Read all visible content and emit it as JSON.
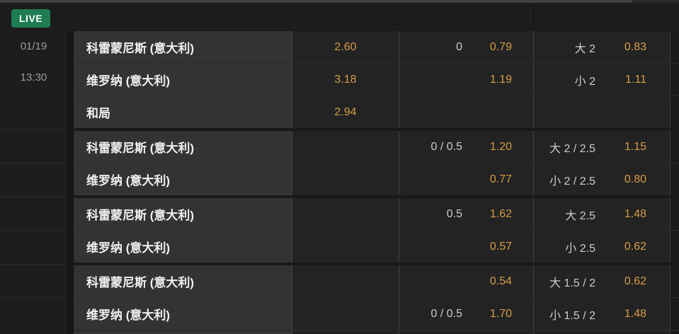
{
  "header": {
    "live_label": "LIVE",
    "date": "01/19",
    "time": "13:30"
  },
  "colors": {
    "live_badge_green": "#1e7b52",
    "odds_gold": "#d69c46",
    "line_label_gray": "#cccccc",
    "team_text_white": "#f1f1f1",
    "row_bg": "#232323",
    "team_cell_bg": "#333333"
  },
  "rows": [
    {
      "team": "科雷蒙尼斯 (意大利)",
      "odds_1x2": "2.60",
      "hcp_line": "0",
      "hcp_odds": "0.79",
      "ou_line": "大 2",
      "ou_odds": "0.83"
    },
    {
      "team": "维罗纳 (意大利)",
      "odds_1x2": "3.18",
      "hcp_line": "",
      "hcp_odds": "1.19",
      "ou_line": "小 2",
      "ou_odds": "1.11"
    },
    {
      "team": "和局",
      "odds_1x2": "2.94",
      "hcp_line": "",
      "hcp_odds": "",
      "ou_line": "",
      "ou_odds": ""
    },
    {
      "team": "科雷蒙尼斯 (意大利)",
      "odds_1x2": "",
      "hcp_line": "0 / 0.5",
      "hcp_odds": "1.20",
      "ou_line": "大 2 / 2.5",
      "ou_odds": "1.15"
    },
    {
      "team": "维罗纳 (意大利)",
      "odds_1x2": "",
      "hcp_line": "",
      "hcp_odds": "0.77",
      "ou_line": "小 2 / 2.5",
      "ou_odds": "0.80"
    },
    {
      "team": "科雷蒙尼斯 (意大利)",
      "odds_1x2": "",
      "hcp_line": "0.5",
      "hcp_odds": "1.62",
      "ou_line": "大 2.5",
      "ou_odds": "1.48"
    },
    {
      "team": "维罗纳 (意大利)",
      "odds_1x2": "",
      "hcp_line": "",
      "hcp_odds": "0.57",
      "ou_line": "小 2.5",
      "ou_odds": "0.62"
    },
    {
      "team": "科雷蒙尼斯 (意大利)",
      "odds_1x2": "",
      "hcp_line": "",
      "hcp_odds": "0.54",
      "ou_line": "大 1.5 / 2",
      "ou_odds": "0.62"
    },
    {
      "team": "维罗纳 (意大利)",
      "odds_1x2": "",
      "hcp_line": "0 / 0.5",
      "hcp_odds": "1.70",
      "ou_line": "小 1.5 / 2",
      "ou_odds": "1.48"
    }
  ],
  "groups": [
    [
      0,
      1,
      2
    ],
    [
      3,
      4
    ],
    [
      5,
      6
    ],
    [
      7,
      8
    ]
  ]
}
